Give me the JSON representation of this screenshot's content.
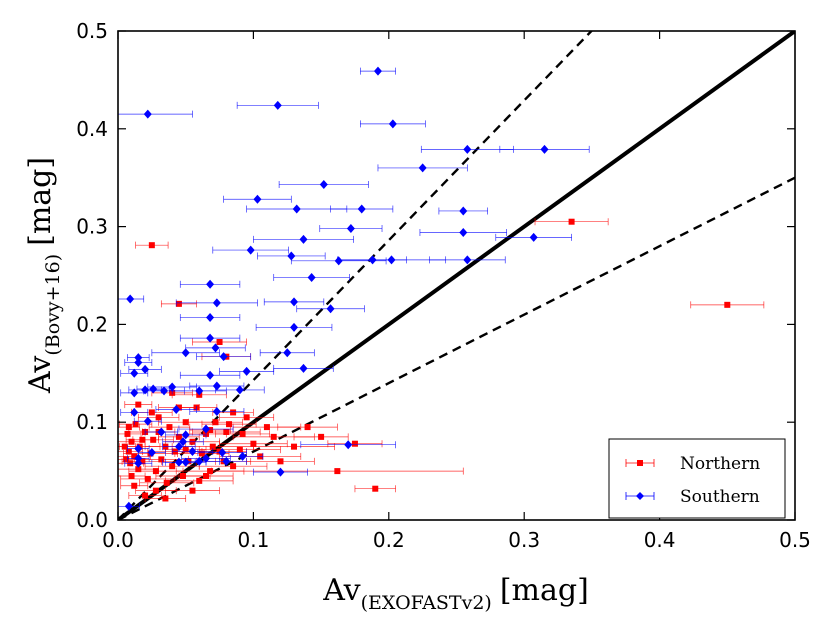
{
  "chart_data": {
    "type": "scatter",
    "title": "",
    "xlabel": {
      "main": "Av",
      "subscript": "(EXOFASTv2)",
      "unit": "[mag]"
    },
    "ylabel": {
      "main": "Av",
      "subscript": "(Bovy+16)",
      "unit": "[mag]"
    },
    "xlim": [
      0.0,
      0.5
    ],
    "ylim": [
      0.0,
      0.5
    ],
    "xticks": [
      "0.0",
      "0.1",
      "0.2",
      "0.3",
      "0.4",
      "0.5"
    ],
    "yticks": [
      "0.0",
      "0.1",
      "0.2",
      "0.3",
      "0.4",
      "0.5"
    ],
    "grid": false,
    "legend_position": "bottom-right",
    "reference_lines": [
      {
        "name": "one-to-one",
        "style": "solid",
        "slope": 1.0
      },
      {
        "name": "upper-bound",
        "style": "dashed",
        "slope": 1.43
      },
      {
        "name": "lower-bound",
        "style": "dashed",
        "slope": 0.7
      }
    ],
    "series": [
      {
        "name": "Northern",
        "color": "#ff0000",
        "marker": "square",
        "points": [
          [
            0.335,
            0.305,
            0.027
          ],
          [
            0.45,
            0.22,
            0.027
          ],
          [
            0.025,
            0.281,
            0.012
          ],
          [
            0.045,
            0.221,
            0.013
          ],
          [
            0.075,
            0.182,
            0.02
          ],
          [
            0.08,
            0.167,
            0.018
          ],
          [
            0.19,
            0.032,
            0.015
          ],
          [
            0.162,
            0.05,
            0.093
          ],
          [
            0.14,
            0.095,
            0.022
          ],
          [
            0.12,
            0.06,
            0.025
          ],
          [
            0.115,
            0.085,
            0.03
          ],
          [
            0.1,
            0.078,
            0.025
          ],
          [
            0.095,
            0.105,
            0.02
          ],
          [
            0.09,
            0.072,
            0.03
          ],
          [
            0.085,
            0.11,
            0.015
          ],
          [
            0.08,
            0.09,
            0.025
          ],
          [
            0.078,
            0.06,
            0.02
          ],
          [
            0.072,
            0.1,
            0.02
          ],
          [
            0.07,
            0.075,
            0.03
          ],
          [
            0.068,
            0.05,
            0.025
          ],
          [
            0.065,
            0.088,
            0.015
          ],
          [
            0.062,
            0.068,
            0.02
          ],
          [
            0.06,
            0.04,
            0.025
          ],
          [
            0.058,
            0.115,
            0.015
          ],
          [
            0.055,
            0.08,
            0.02
          ],
          [
            0.052,
            0.06,
            0.02
          ],
          [
            0.05,
            0.1,
            0.02
          ],
          [
            0.048,
            0.045,
            0.02
          ],
          [
            0.045,
            0.085,
            0.015
          ],
          [
            0.042,
            0.07,
            0.02
          ],
          [
            0.04,
            0.055,
            0.02
          ],
          [
            0.038,
            0.095,
            0.015
          ],
          [
            0.036,
            0.038,
            0.02
          ],
          [
            0.035,
            0.075,
            0.015
          ],
          [
            0.032,
            0.062,
            0.02
          ],
          [
            0.03,
            0.105,
            0.015
          ],
          [
            0.028,
            0.05,
            0.02
          ],
          [
            0.026,
            0.082,
            0.015
          ],
          [
            0.024,
            0.068,
            0.02
          ],
          [
            0.022,
            0.042,
            0.02
          ],
          [
            0.02,
            0.09,
            0.012
          ],
          [
            0.018,
            0.06,
            0.015
          ],
          [
            0.016,
            0.075,
            0.015
          ],
          [
            0.015,
            0.052,
            0.015
          ],
          [
            0.013,
            0.098,
            0.012
          ],
          [
            0.012,
            0.065,
            0.012
          ],
          [
            0.01,
            0.08,
            0.01
          ],
          [
            0.009,
            0.058,
            0.01
          ],
          [
            0.008,
            0.07,
            0.01
          ],
          [
            0.007,
            0.088,
            0.01
          ],
          [
            0.006,
            0.062,
            0.008
          ],
          [
            0.005,
            0.075,
            0.008
          ],
          [
            0.012,
            0.035,
            0.01
          ],
          [
            0.02,
            0.025,
            0.012
          ],
          [
            0.028,
            0.03,
            0.015
          ],
          [
            0.035,
            0.022,
            0.015
          ],
          [
            0.01,
            0.045,
            0.01
          ],
          [
            0.055,
            0.03,
            0.02
          ],
          [
            0.065,
            0.045,
            0.02
          ],
          [
            0.085,
            0.055,
            0.025
          ],
          [
            0.105,
            0.065,
            0.03
          ],
          [
            0.11,
            0.095,
            0.025
          ],
          [
            0.13,
            0.075,
            0.03
          ],
          [
            0.15,
            0.085,
            0.02
          ],
          [
            0.175,
            0.078,
            0.02
          ],
          [
            0.025,
            0.11,
            0.015
          ],
          [
            0.04,
            0.13,
            0.015
          ],
          [
            0.06,
            0.128,
            0.02
          ],
          [
            0.015,
            0.118,
            0.01
          ],
          [
            0.008,
            0.095,
            0.008
          ],
          [
            0.045,
            0.115,
            0.015
          ],
          [
            0.075,
            0.07,
            0.02
          ],
          [
            0.092,
            0.088,
            0.02
          ],
          [
            0.018,
            0.082,
            0.012
          ],
          [
            0.03,
            0.09,
            0.012
          ],
          [
            0.05,
            0.072,
            0.015
          ],
          [
            0.068,
            0.092,
            0.015
          ],
          [
            0.082,
            0.098,
            0.02
          ]
        ]
      },
      {
        "name": "Southern",
        "color": "#0000ff",
        "marker": "diamond",
        "points": [
          [
            0.192,
            0.459,
            0.013
          ],
          [
            0.022,
            0.415,
            0.033
          ],
          [
            0.118,
            0.424,
            0.03
          ],
          [
            0.203,
            0.405,
            0.024
          ],
          [
            0.258,
            0.379,
            0.034
          ],
          [
            0.315,
            0.379,
            0.033
          ],
          [
            0.225,
            0.36,
            0.033
          ],
          [
            0.152,
            0.343,
            0.033
          ],
          [
            0.103,
            0.328,
            0.025
          ],
          [
            0.132,
            0.318,
            0.037
          ],
          [
            0.18,
            0.318,
            0.023
          ],
          [
            0.255,
            0.316,
            0.018
          ],
          [
            0.172,
            0.298,
            0.023
          ],
          [
            0.255,
            0.294,
            0.032
          ],
          [
            0.307,
            0.289,
            0.028
          ],
          [
            0.137,
            0.287,
            0.037
          ],
          [
            0.098,
            0.276,
            0.028
          ],
          [
            0.258,
            0.266,
            0.028
          ],
          [
            0.202,
            0.266,
            0.04
          ],
          [
            0.188,
            0.266,
            0.025
          ],
          [
            0.163,
            0.265,
            0.035
          ],
          [
            0.128,
            0.27,
            0.025
          ],
          [
            0.143,
            0.248,
            0.028
          ],
          [
            0.068,
            0.241,
            0.022
          ],
          [
            0.009,
            0.226,
            0.01
          ],
          [
            0.073,
            0.222,
            0.03
          ],
          [
            0.13,
            0.223,
            0.022
          ],
          [
            0.157,
            0.216,
            0.025
          ],
          [
            0.068,
            0.207,
            0.022
          ],
          [
            0.13,
            0.197,
            0.028
          ],
          [
            0.068,
            0.186,
            0.022
          ],
          [
            0.05,
            0.171,
            0.025
          ],
          [
            0.072,
            0.176,
            0.022
          ],
          [
            0.015,
            0.166,
            0.008
          ],
          [
            0.078,
            0.167,
            0.02
          ],
          [
            0.125,
            0.171,
            0.02
          ],
          [
            0.015,
            0.161,
            0.01
          ],
          [
            0.02,
            0.154,
            0.012
          ],
          [
            0.012,
            0.15,
            0.01
          ],
          [
            0.137,
            0.155,
            0.022
          ],
          [
            0.095,
            0.152,
            0.02
          ],
          [
            0.068,
            0.148,
            0.022
          ],
          [
            0.012,
            0.13,
            0.01
          ],
          [
            0.02,
            0.133,
            0.012
          ],
          [
            0.026,
            0.134,
            0.012
          ],
          [
            0.034,
            0.132,
            0.015
          ],
          [
            0.04,
            0.136,
            0.018
          ],
          [
            0.06,
            0.132,
            0.02
          ],
          [
            0.073,
            0.137,
            0.02
          ],
          [
            0.09,
            0.133,
            0.018
          ],
          [
            0.043,
            0.113,
            0.015
          ],
          [
            0.073,
            0.111,
            0.02
          ],
          [
            0.012,
            0.11,
            0.01
          ],
          [
            0.022,
            0.101,
            0.01
          ],
          [
            0.065,
            0.093,
            0.02
          ],
          [
            0.032,
            0.09,
            0.012
          ],
          [
            0.05,
            0.087,
            0.015
          ],
          [
            0.048,
            0.08,
            0.015
          ],
          [
            0.045,
            0.075,
            0.012
          ],
          [
            0.055,
            0.07,
            0.015
          ],
          [
            0.077,
            0.069,
            0.018
          ],
          [
            0.065,
            0.063,
            0.018
          ],
          [
            0.08,
            0.06,
            0.015
          ],
          [
            0.092,
            0.065,
            0.015
          ],
          [
            0.05,
            0.059,
            0.015
          ],
          [
            0.025,
            0.069,
            0.01
          ],
          [
            0.015,
            0.073,
            0.008
          ],
          [
            0.045,
            0.059,
            0.012
          ],
          [
            0.06,
            0.06,
            0.015
          ],
          [
            0.015,
            0.058,
            0.01
          ],
          [
            0.008,
            0.014,
            0.008
          ],
          [
            0.17,
            0.077,
            0.035
          ],
          [
            0.12,
            0.049,
            0.02
          ],
          [
            0.015,
            0.063,
            0.008
          ]
        ]
      }
    ]
  }
}
